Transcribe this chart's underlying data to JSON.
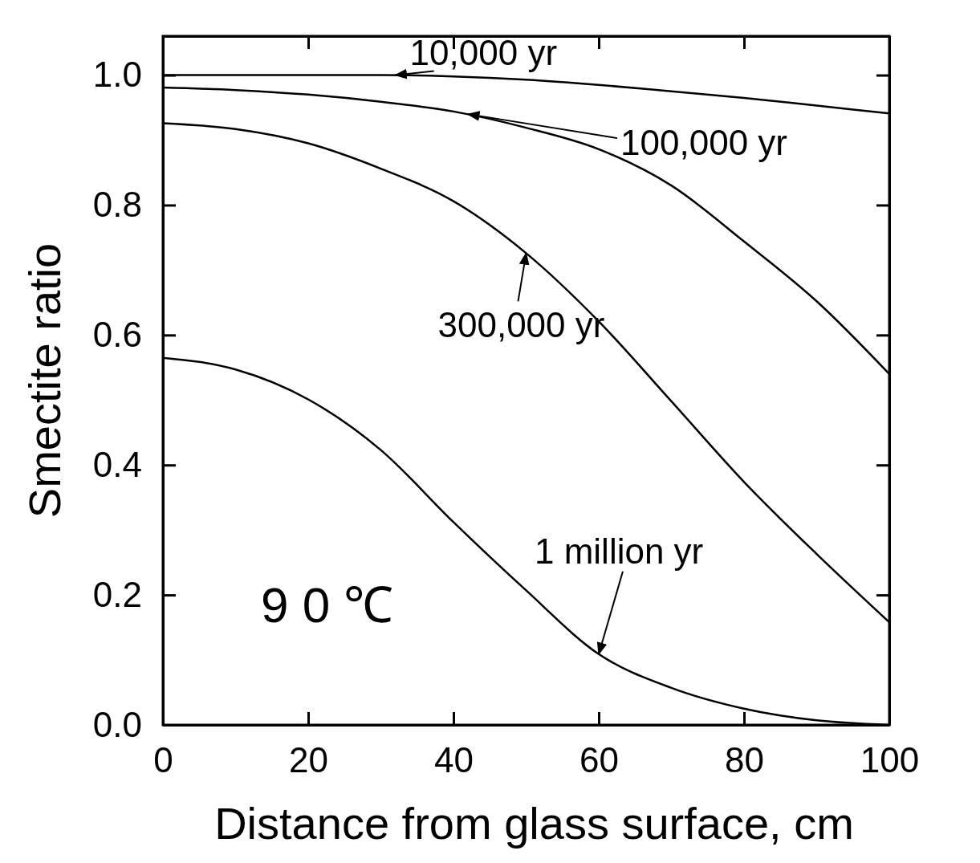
{
  "chart_data": {
    "type": "line",
    "xlabel": "Distance from glass surface, cm",
    "ylabel": "Smectite ratio",
    "xlim": [
      0,
      100
    ],
    "ylim": [
      0,
      1.06
    ],
    "xticks": [
      0,
      20,
      40,
      60,
      80,
      100
    ],
    "yticks": [
      {
        "value": 0,
        "label": "0.0"
      },
      {
        "value": 0.2,
        "label": "0.2"
      },
      {
        "value": 0.4,
        "label": "0.4"
      },
      {
        "value": 0.6,
        "label": "0.6"
      },
      {
        "value": 0.8,
        "label": "0.8"
      },
      {
        "value": 1,
        "label": "1.0"
      }
    ],
    "x": [
      0,
      10,
      20,
      30,
      40,
      50,
      60,
      70,
      80,
      90,
      100
    ],
    "series": [
      {
        "color": "#000000",
        "values": [
          1.0,
          1.0,
          1.0,
          1.0,
          0.998,
          0.993,
          0.985,
          0.975,
          0.965,
          0.953,
          0.941
        ]
      },
      {
        "color": "#000000",
        "values": [
          0.981,
          0.977,
          0.97,
          0.959,
          0.944,
          0.919,
          0.886,
          0.83,
          0.744,
          0.652,
          0.54
        ]
      },
      {
        "color": "#000000",
        "values": [
          0.926,
          0.917,
          0.895,
          0.856,
          0.806,
          0.726,
          0.621,
          0.498,
          0.374,
          0.263,
          0.158
        ]
      },
      {
        "color": "#000000",
        "values": [
          0.565,
          0.547,
          0.501,
          0.423,
          0.312,
          0.207,
          0.109,
          0.057,
          0.025,
          0.007,
          0.0
        ]
      }
    ],
    "annotations": [
      {
        "text": "10,000 yr",
        "x": 32,
        "y": 1.0
      },
      {
        "text": "100,000 yr",
        "x": 42,
        "y": 0.94
      },
      {
        "text": "300,000 yr",
        "x": 50,
        "y": 0.726
      },
      {
        "text": "1 million yr",
        "x": 60,
        "y": 0.109
      },
      "9 0 ℃"
    ],
    "grid": false,
    "marker": "none",
    "line_style": "solid"
  }
}
